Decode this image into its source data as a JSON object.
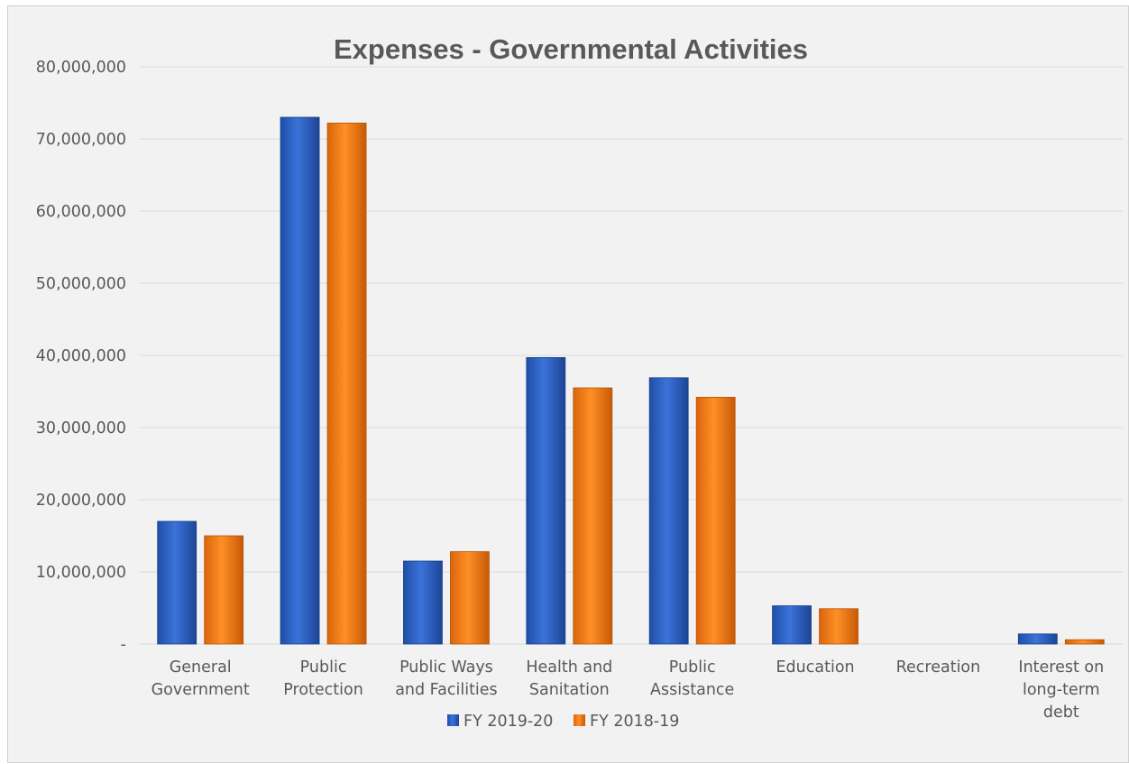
{
  "chart_data": {
    "type": "bar",
    "title": "Expenses - Governmental Activities",
    "xlabel": "",
    "ylabel": "",
    "ylim": [
      0,
      80000000
    ],
    "ytick_values": [
      0,
      10000000,
      20000000,
      30000000,
      40000000,
      50000000,
      60000000,
      70000000,
      80000000
    ],
    "ytick_labels": [
      "-",
      "10,000,000",
      "20,000,000",
      "30,000,000",
      "40,000,000",
      "50,000,000",
      "60,000,000",
      "70,000,000",
      "80,000,000"
    ],
    "grid": true,
    "legend_position": "bottom",
    "categories": [
      [
        "General",
        "Government"
      ],
      [
        "Public",
        "Protection"
      ],
      [
        "Public Ways",
        "and Facilities"
      ],
      [
        "Health and",
        "Sanitation"
      ],
      [
        "Public",
        "Assistance"
      ],
      [
        "Education"
      ],
      [
        "Recreation"
      ],
      [
        "Interest on",
        "long-term",
        "debt"
      ]
    ],
    "series": [
      {
        "name": "FY 2019-20",
        "color": "#2e63c6",
        "values": [
          17000000,
          73000000,
          11500000,
          39700000,
          36900000,
          5300000,
          0,
          1400000
        ]
      },
      {
        "name": "FY 2018-19",
        "color": "#f27d14",
        "values": [
          15000000,
          72200000,
          12800000,
          35500000,
          34200000,
          4900000,
          0,
          600000
        ]
      }
    ]
  }
}
